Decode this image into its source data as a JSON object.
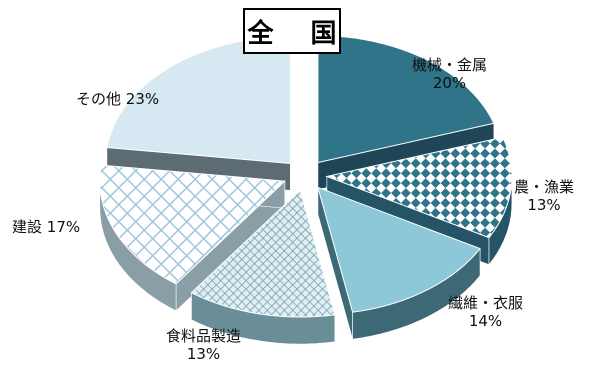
{
  "chart_data": {
    "type": "pie",
    "title": "全 国",
    "style": "exploded 3d pie",
    "slices": [
      {
        "label": "機械・金属",
        "value": 20,
        "display": "20%",
        "color": "#2f7488",
        "pattern": "solid"
      },
      {
        "label": "農・漁業",
        "value": 13,
        "display": "13%",
        "color": "#2f7488",
        "pattern": "checker"
      },
      {
        "label": "繊維・衣服",
        "value": 14,
        "display": "14%",
        "color": "#8cc8d8",
        "pattern": "solid"
      },
      {
        "label": "食料品製造",
        "value": 13,
        "display": "13%",
        "color": "#6fa1b1",
        "pattern": "diamond"
      },
      {
        "label": "建設",
        "value": 17,
        "display": "17%",
        "color": "#9fc8d8",
        "pattern": "grid"
      },
      {
        "label": "その他",
        "value": 23,
        "display": "23%",
        "color": "#d6e8f1",
        "pattern": "solid"
      }
    ]
  }
}
